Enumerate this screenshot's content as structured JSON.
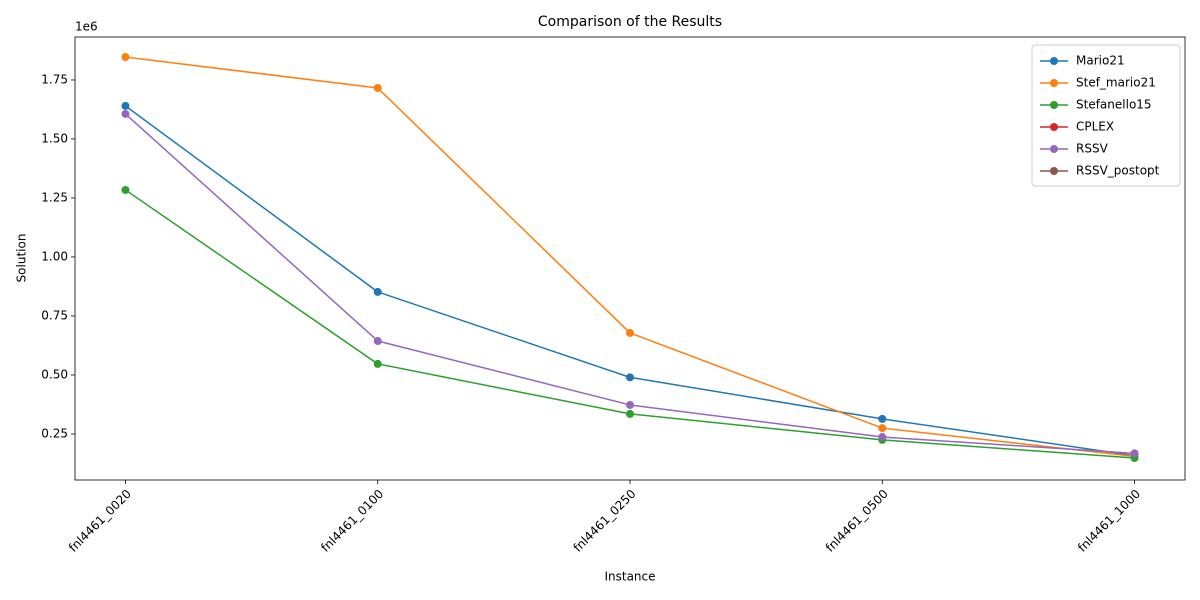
{
  "chart_data": {
    "type": "line",
    "title": "Comparison of the Results",
    "xlabel": "Instance",
    "ylabel": "Solution",
    "y_offset_label": "1e6",
    "categories": [
      "fnl4461_0020",
      "fnl4461_0100",
      "fnl4461_0250",
      "fnl4461_0500",
      "fnl4461_1000"
    ],
    "series": [
      {
        "name": "Mario21",
        "color": "#1f77b4",
        "values": [
          1.64,
          0.852,
          0.49,
          0.314,
          0.158
        ]
      },
      {
        "name": "Stef_mario21",
        "color": "#ff7f0e",
        "values": [
          1.847,
          1.716,
          0.678,
          0.275,
          0.155
        ]
      },
      {
        "name": "Stefanello15",
        "color": "#2ca02c",
        "values": [
          1.284,
          0.547,
          0.335,
          0.225,
          0.148
        ]
      },
      {
        "name": "CPLEX",
        "color": "#d62728",
        "values": [
          null,
          null,
          null,
          null,
          null
        ]
      },
      {
        "name": "RSSV",
        "color": "#9467bd",
        "values": [
          1.606,
          0.644,
          0.373,
          0.237,
          0.168
        ]
      },
      {
        "name": "RSSV_postopt",
        "color": "#8c564b",
        "values": [
          null,
          null,
          null,
          null,
          null
        ]
      }
    ],
    "ylim": [
      0.055,
      1.932
    ],
    "yticks": [
      0.25,
      {
        "value": 0.5,
        "label": "0.50"
      },
      0.75,
      {
        "value": 1.0,
        "label": "1.00"
      },
      1.25,
      {
        "value": 1.5,
        "label": "1.50"
      },
      1.75
    ],
    "legend": "upper right",
    "markers": true,
    "grid": false
  }
}
